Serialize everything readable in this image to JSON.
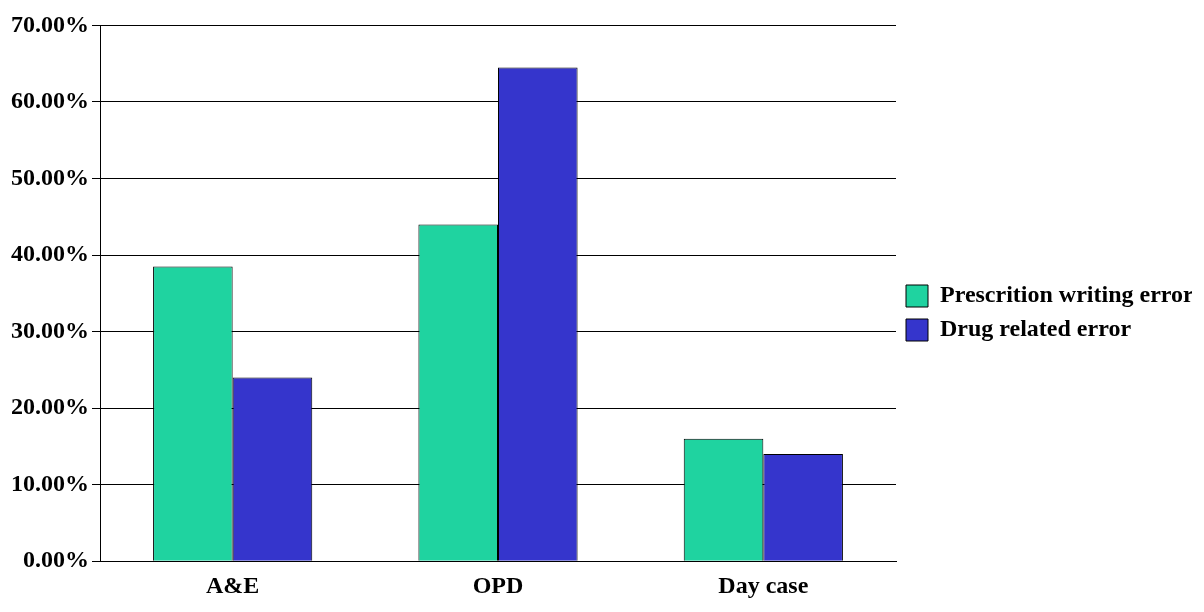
{
  "chart_data": {
    "type": "bar",
    "categories": [
      "A&E",
      "OPD",
      "Day case"
    ],
    "series": [
      {
        "name": "Prescrition writing error",
        "color": "#1fd3a0",
        "values": [
          38.5,
          44,
          16
        ]
      },
      {
        "name": "Drug related error",
        "color": "#3535cc",
        "values": [
          24,
          64.5,
          14
        ]
      }
    ],
    "ylim": [
      0,
      70
    ],
    "yticks": [
      {
        "value": 0,
        "label": "0.00%"
      },
      {
        "value": 10,
        "label": "10.00%"
      },
      {
        "value": 20,
        "label": "20.00%"
      },
      {
        "value": 30,
        "label": "30.00%"
      },
      {
        "value": 40,
        "label": "40.00%"
      },
      {
        "value": 50,
        "label": "50.00%"
      },
      {
        "value": 60,
        "label": "60.00%"
      },
      {
        "value": 70,
        "label": "70.00%"
      }
    ],
    "grid": "y",
    "legend": "right"
  }
}
